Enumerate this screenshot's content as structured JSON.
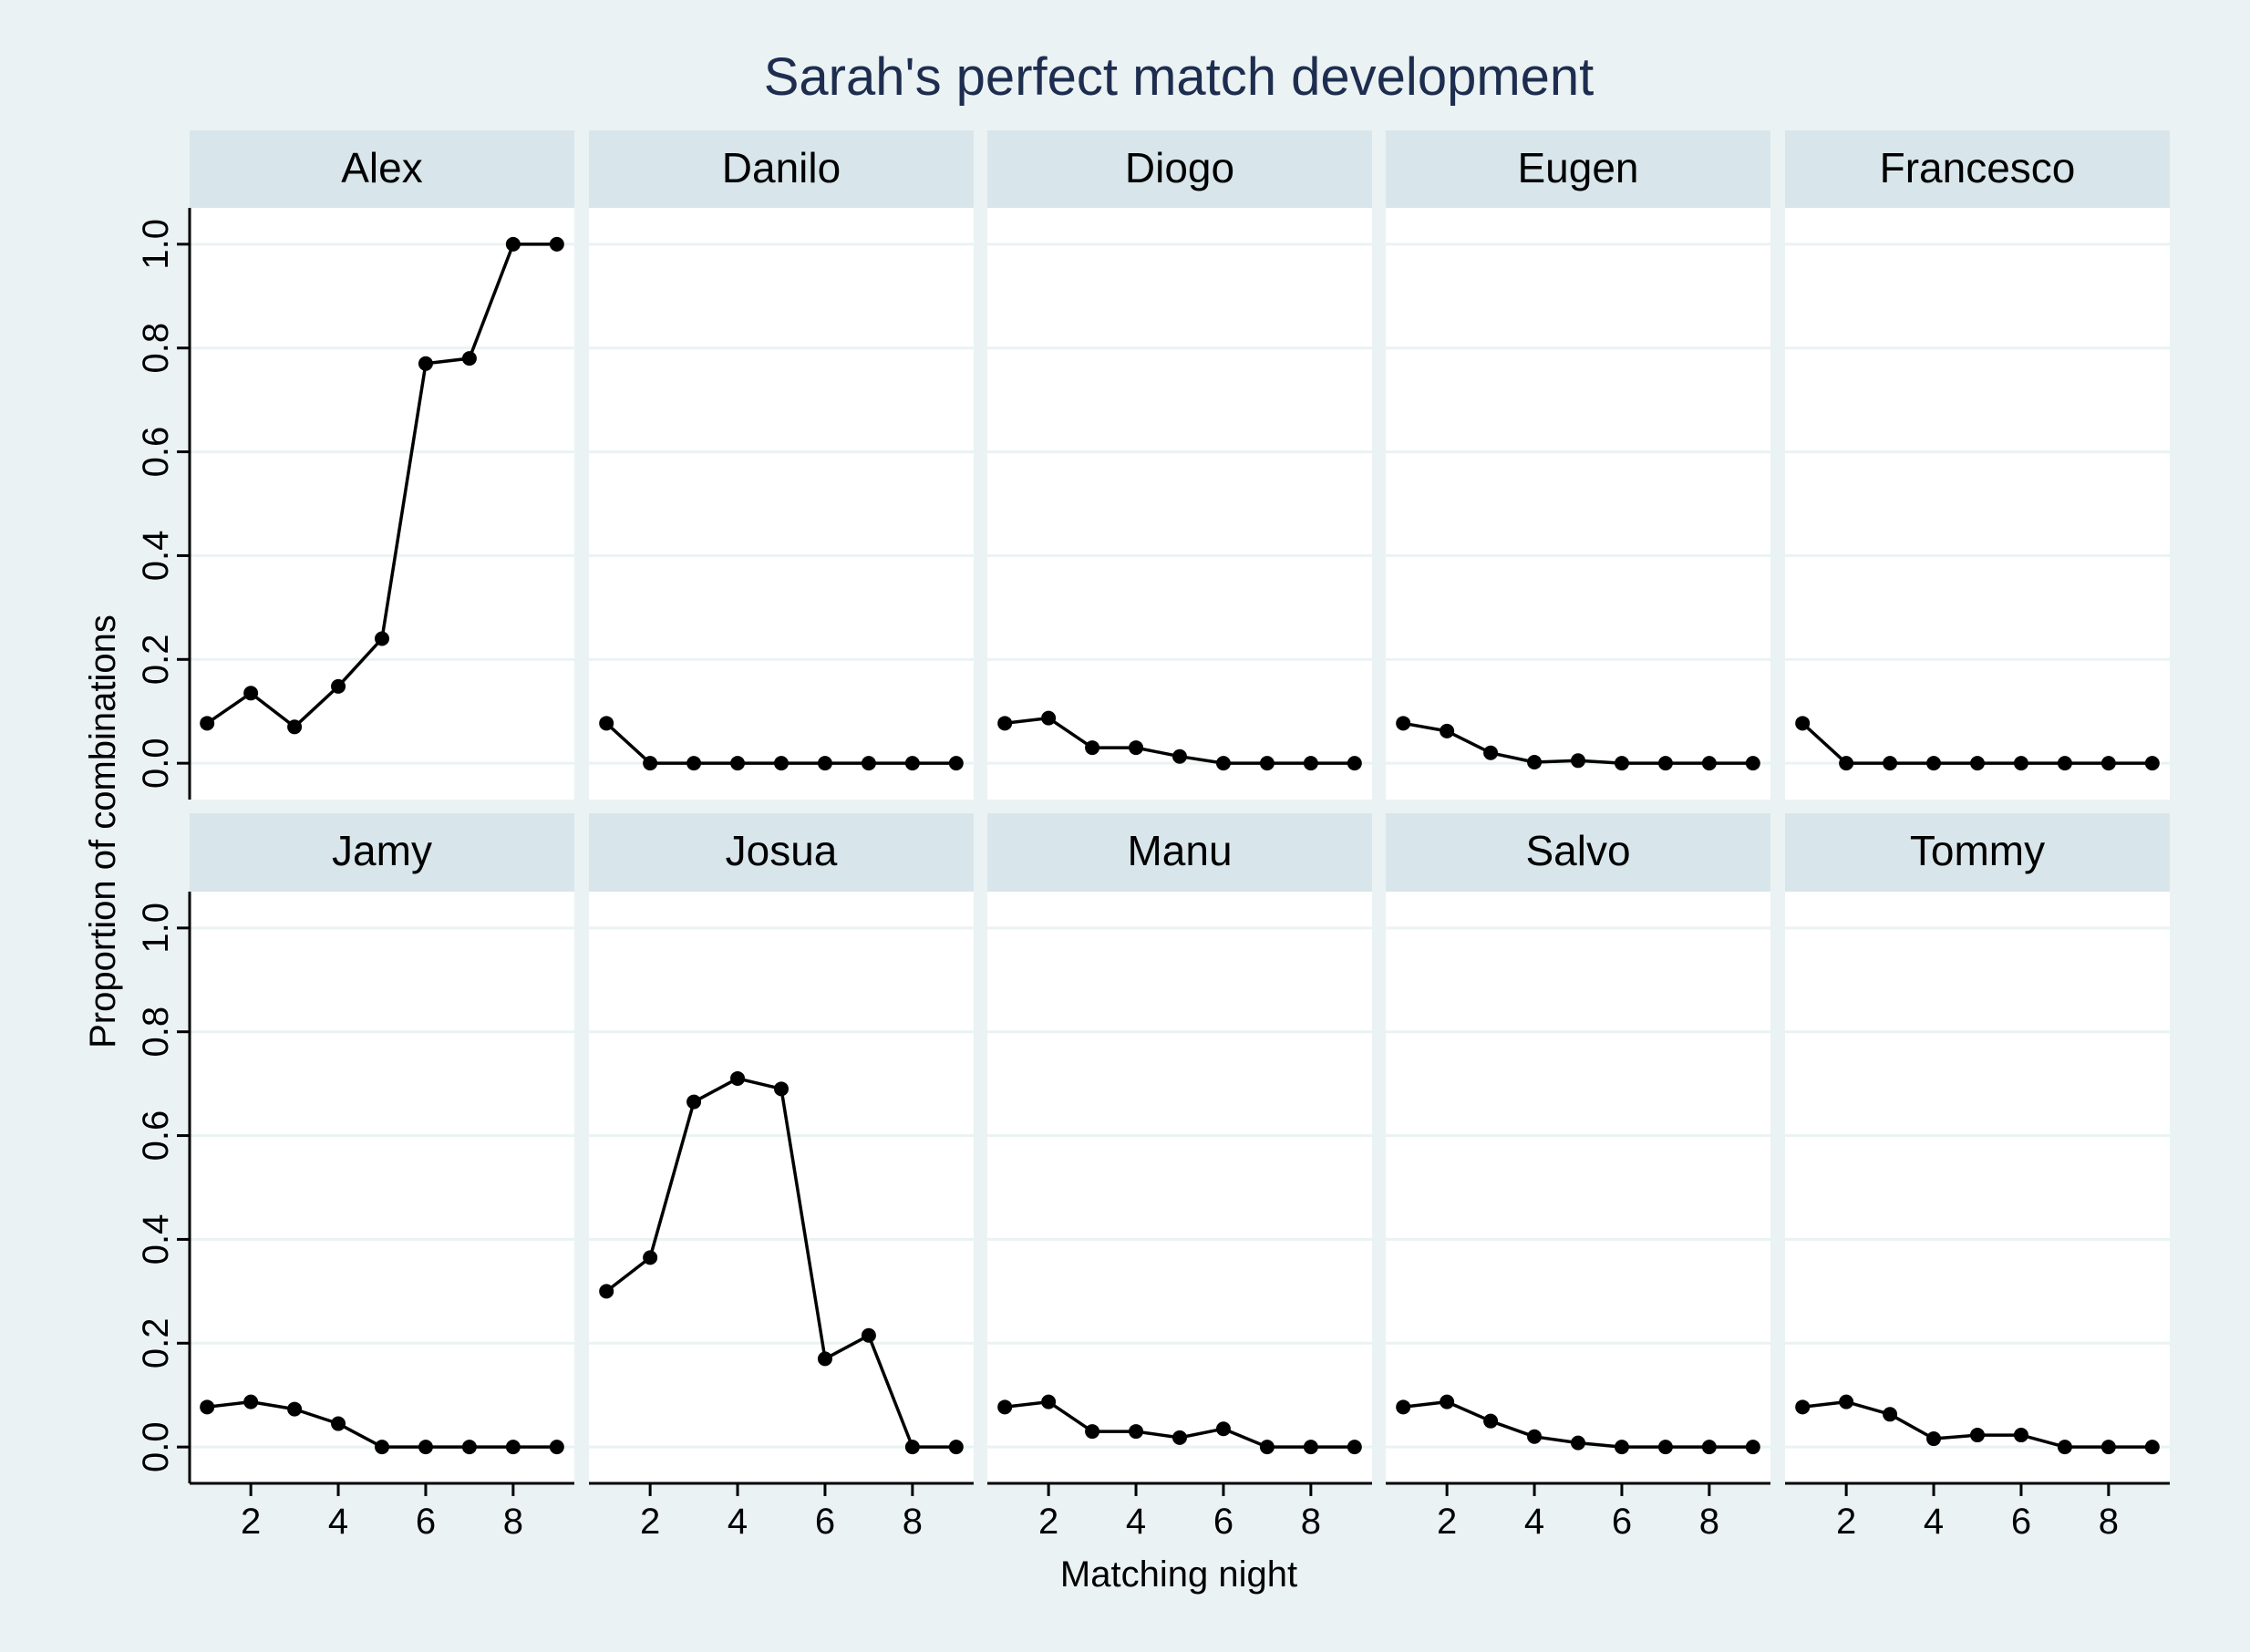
{
  "chart_data": {
    "type": "line",
    "title": "Sarah's perfect match development",
    "xlabel": "Matching night",
    "ylabel": "Proportion of combinations",
    "xlim": [
      0.6,
      9.4
    ],
    "ylim": [
      -0.07,
      1.07
    ],
    "x_ticks": [
      2,
      4,
      6,
      8
    ],
    "y_ticks": [
      "0.0",
      "0.2",
      "0.4",
      "0.6",
      "0.8",
      "1.0"
    ],
    "grid": true,
    "legend": "none",
    "colors": {
      "background": "#eaf2f3",
      "strip": "#d8e6eb",
      "line": "#000000",
      "title": "#1e2d4f",
      "grid": "#eaf2f3"
    },
    "x": [
      1,
      2,
      3,
      4,
      5,
      6,
      7,
      8,
      9
    ],
    "panels": [
      {
        "name": "Alex",
        "values": [
          0.077,
          0.135,
          0.07,
          0.148,
          0.24,
          0.77,
          0.78,
          1.0,
          1.0
        ]
      },
      {
        "name": "Danilo",
        "values": [
          0.077,
          0.0,
          0.0,
          0.0,
          0.0,
          0.0,
          0.0,
          0.0,
          0.0
        ]
      },
      {
        "name": "Diogo",
        "values": [
          0.077,
          0.087,
          0.03,
          0.03,
          0.013,
          0.0,
          0.0,
          0.0,
          0.0
        ]
      },
      {
        "name": "Eugen",
        "values": [
          0.077,
          0.062,
          0.02,
          0.002,
          0.005,
          0.0,
          0.0,
          0.0,
          0.0
        ]
      },
      {
        "name": "Francesco",
        "values": [
          0.077,
          0.0,
          0.0,
          0.0,
          0.0,
          0.0,
          0.0,
          0.0,
          0.0
        ]
      },
      {
        "name": "Jamy",
        "values": [
          0.077,
          0.087,
          0.073,
          0.045,
          0.0,
          0.0,
          0.0,
          0.0,
          0.0
        ]
      },
      {
        "name": "Josua",
        "values": [
          0.3,
          0.365,
          0.665,
          0.71,
          0.69,
          0.17,
          0.215,
          0.0,
          0.0
        ]
      },
      {
        "name": "Manu",
        "values": [
          0.077,
          0.087,
          0.03,
          0.03,
          0.018,
          0.035,
          0.0,
          0.0,
          0.0
        ]
      },
      {
        "name": "Salvo",
        "values": [
          0.077,
          0.087,
          0.05,
          0.02,
          0.008,
          0.0,
          0.0,
          0.0,
          0.0
        ]
      },
      {
        "name": "Tommy",
        "values": [
          0.077,
          0.087,
          0.063,
          0.016,
          0.023,
          0.023,
          0.0,
          0.0,
          0.0
        ]
      }
    ]
  }
}
